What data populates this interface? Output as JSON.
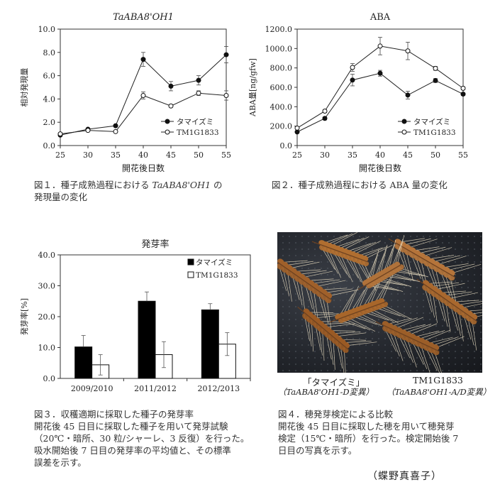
{
  "chart_data": [
    {
      "type": "line",
      "title": "TaABA8'OH1",
      "xlabel": "開花後日数",
      "ylabel": "相対発現量",
      "x": [
        25,
        30,
        35,
        40,
        45,
        50,
        55
      ],
      "ylim": [
        0,
        10
      ],
      "yticks": [
        "0.0",
        "2.0",
        "4.0",
        "6.0",
        "8.0",
        "10.0"
      ],
      "legend_placement": "bottom-right",
      "series": [
        {
          "name": "タマイズミ",
          "marker": "filled",
          "values": [
            0.9,
            1.4,
            1.7,
            7.4,
            5.1,
            5.6,
            7.8
          ],
          "errors": [
            0.1,
            0.1,
            0.1,
            0.6,
            0.4,
            0.4,
            0.7
          ]
        },
        {
          "name": "TM1G1833",
          "marker": "open",
          "values": [
            1.0,
            1.3,
            1.2,
            4.3,
            3.4,
            4.5,
            4.3
          ],
          "errors": [
            0.1,
            0.1,
            0.1,
            0.3,
            0.1,
            0.2,
            0.4
          ]
        }
      ],
      "caption_prefix": "図１．種子成熟過程における ",
      "caption_gene": "TaABA8'OH1",
      "caption_suffix": " の\n発現量の変化"
    },
    {
      "type": "line",
      "title": "ABA",
      "xlabel": "開花後日数",
      "ylabel": "ABA量[ng/gfw]",
      "x": [
        25,
        30,
        35,
        40,
        45,
        50,
        55
      ],
      "ylim": [
        0,
        1200
      ],
      "yticks": [
        "0.0",
        "200.0",
        "400.0",
        "600.0",
        "800.0",
        "1000.0",
        "1200.0"
      ],
      "legend_placement": "bottom-right",
      "series": [
        {
          "name": "タマイズミ",
          "marker": "filled",
          "values": [
            140,
            280,
            675,
            745,
            520,
            670,
            530
          ],
          "errors": [
            10,
            15,
            60,
            30,
            40,
            20,
            15
          ]
        },
        {
          "name": "TM1G1833",
          "marker": "open",
          "values": [
            180,
            355,
            805,
            1025,
            975,
            795,
            590
          ],
          "errors": [
            10,
            15,
            40,
            90,
            90,
            20,
            15
          ]
        }
      ],
      "caption": "図２．種子成熟過程における ABA 量の変化"
    },
    {
      "type": "bar",
      "title": "発芽率",
      "xlabel": "",
      "ylabel": "発芽率[%]",
      "categories": [
        "2009/2010",
        "2011/2012",
        "2012/2013"
      ],
      "ylim": [
        0,
        40
      ],
      "yticks": [
        "0.0",
        "10.0",
        "20.0",
        "30.0",
        "40.0"
      ],
      "legend_placement": "top-right",
      "series": [
        {
          "name": "タマイズミ",
          "fill": "#000000",
          "values": [
            10.2,
            25.0,
            22.2
          ],
          "errors": [
            3.7,
            3.0,
            2.0
          ]
        },
        {
          "name": "TM1G1833",
          "fill": "#ffffff",
          "values": [
            4.4,
            7.7,
            11.1
          ],
          "errors": [
            3.3,
            4.2,
            3.7
          ]
        }
      ],
      "caption": "図３．収穫適期に採取した種子の発芽率\n開花後 45 日目に採取した種子を用いて発芽試験\n（20℃・暗所、30 粒/シャーレ、3 反復）を行った。\n吸水開始後 7 日目の発芽率の平均値と、その標準\n誤差を示す。"
    }
  ],
  "photo": {
    "left_label": "「タマイズミ」",
    "left_sub": "（TaABA8'OH1-D変異）",
    "right_label": "TM1G1833",
    "right_sub": "（TaABA8'OH1-A/D変異）",
    "caption": "図４．穂発芽検定による比較\n開花後 45 日目に採取した穂を用いて穂発芽\n検定（15℃・暗所）を行った。検定開始後 7\n日目の写真を示す。"
  },
  "author": "（蝶野真喜子）"
}
